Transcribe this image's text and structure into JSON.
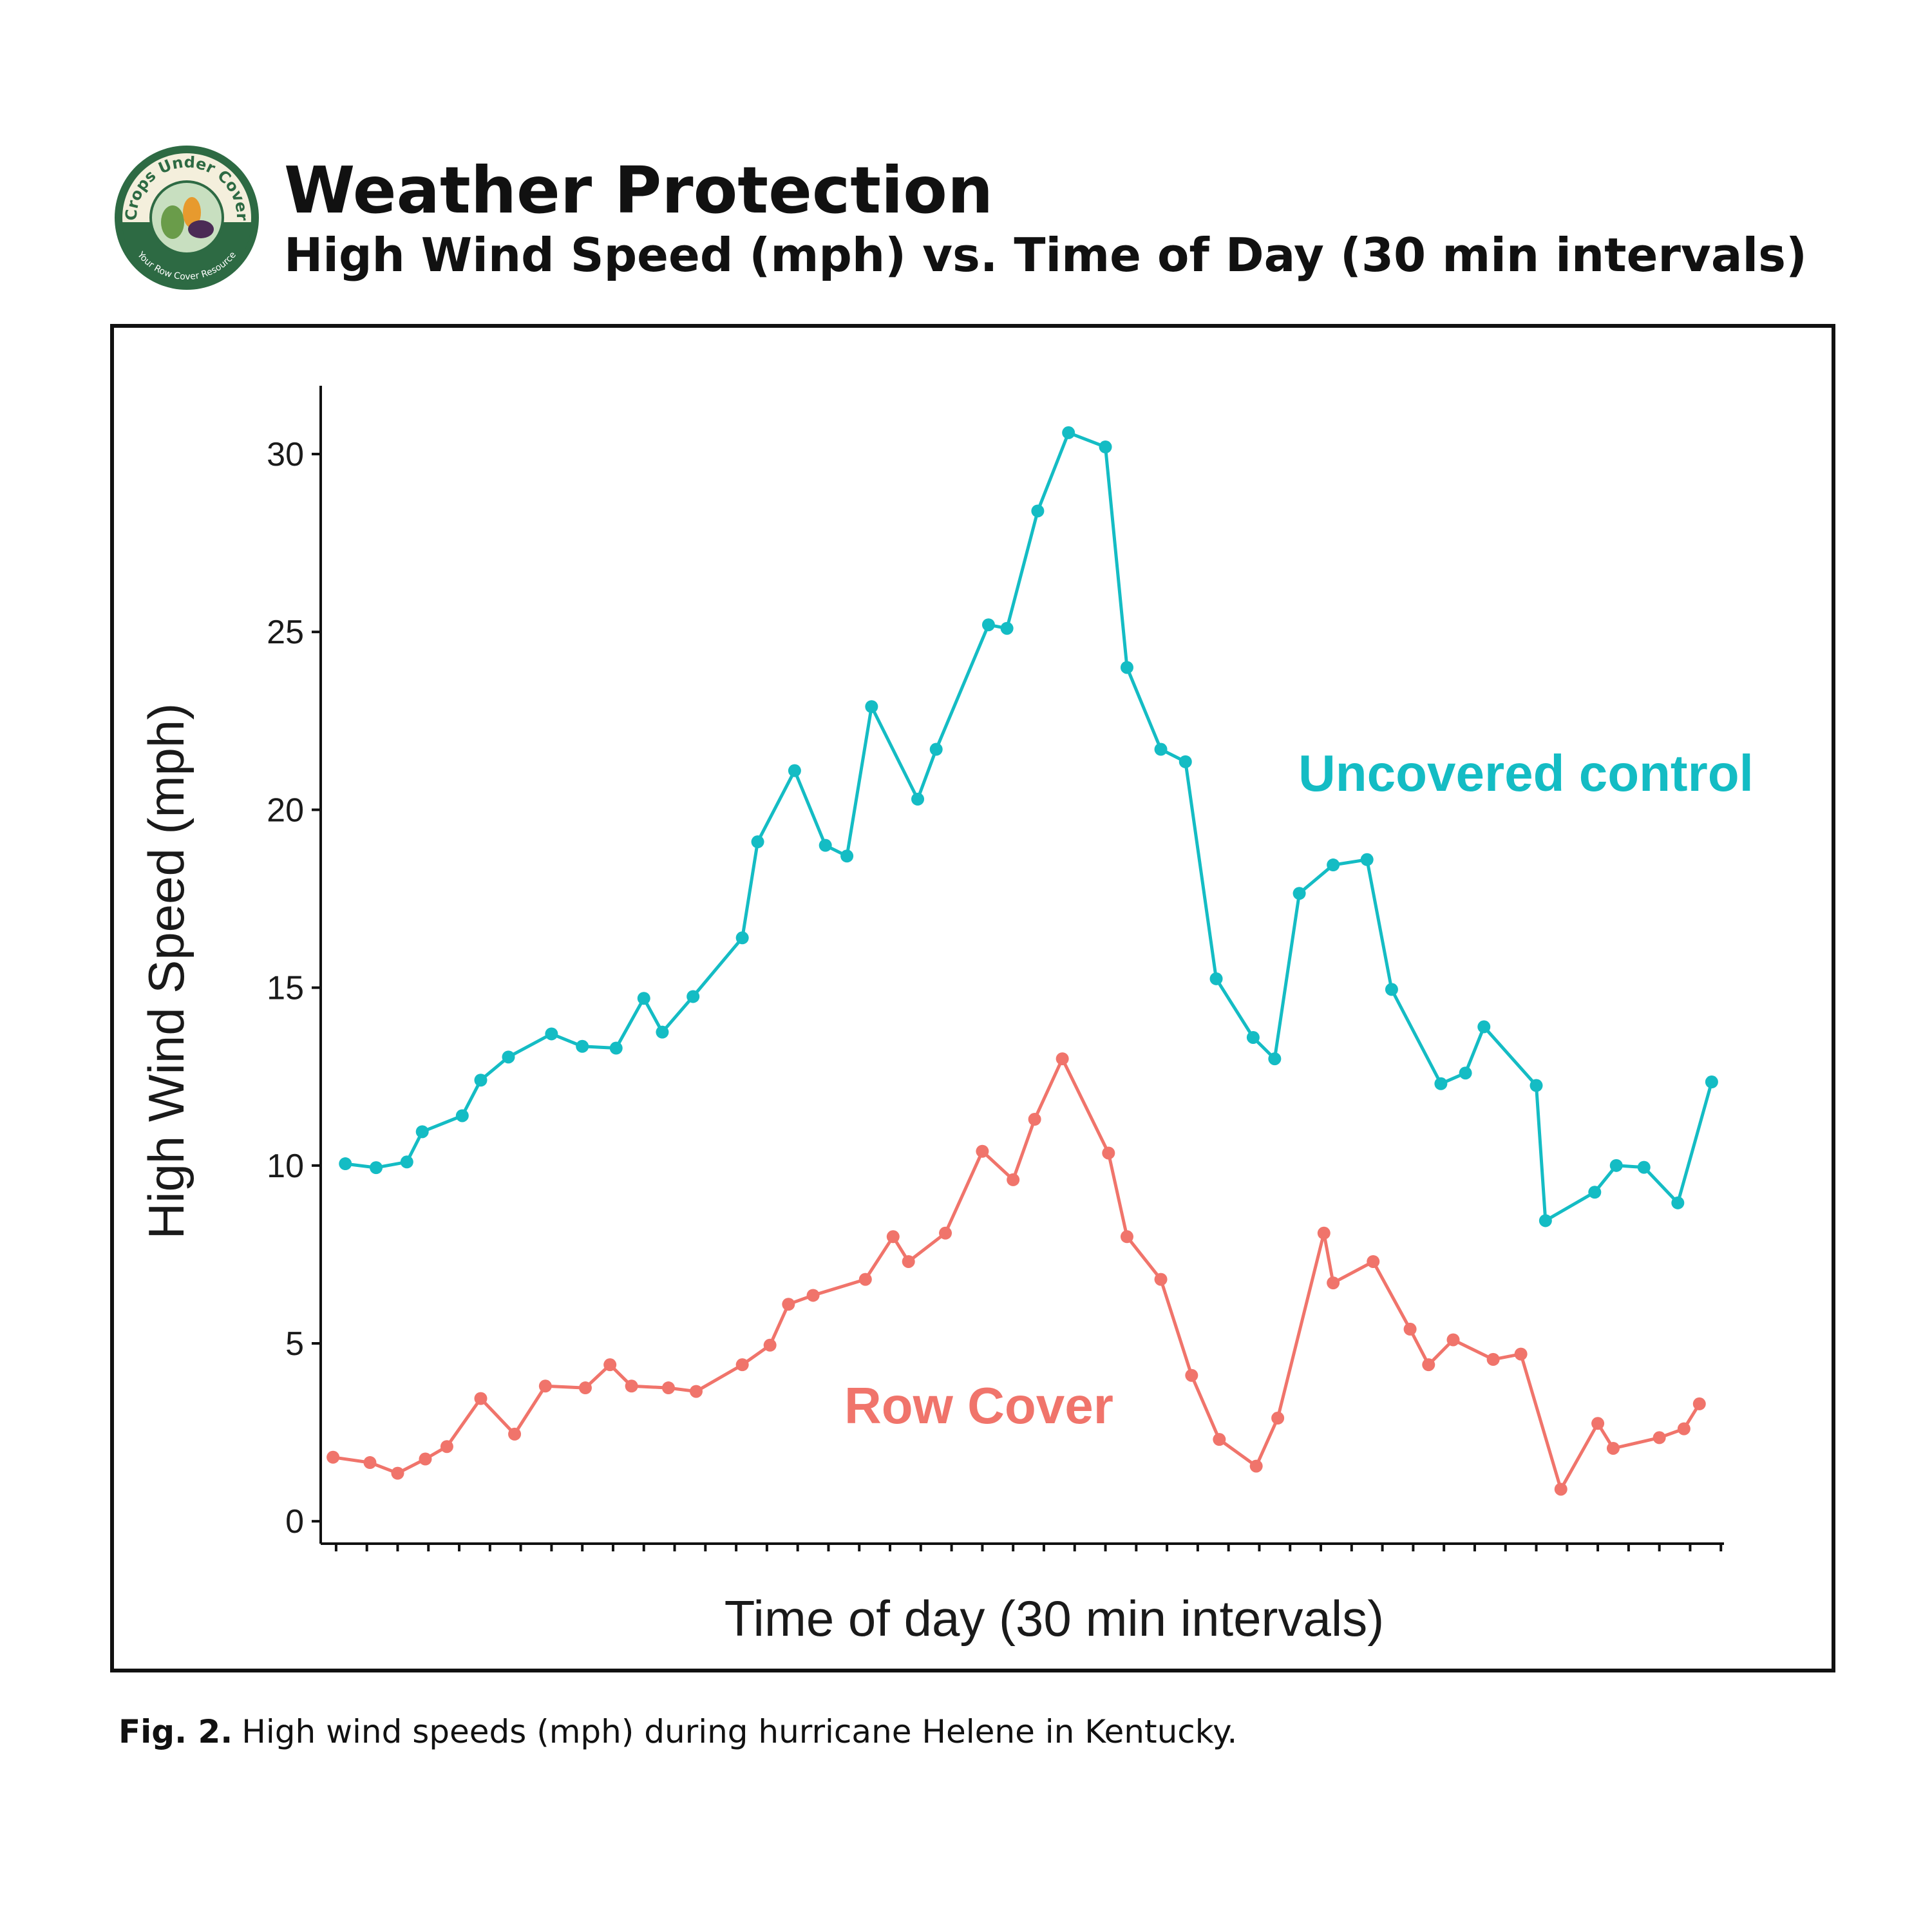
{
  "chart_data": {
    "type": "line",
    "title": "Weather Protection",
    "subtitle": "High Wind Speed (mph) vs. Time of Day (30 min intervals)",
    "logo_text": "Crops Under Cover",
    "logo_tagline": "Your Row Cover Resource",
    "x_label": "Time of day (30 min intervals)",
    "y_label": "High Wind Speed (mph)",
    "caption_label": "Fig. 2.",
    "caption": "High wind speeds (mph) during hurricane Helene in Kentucky.",
    "xlim": [
      -0.5,
      45.1
    ],
    "ylim": [
      -0.63,
      31.92
    ],
    "xticks": [
      0,
      1,
      2,
      3,
      4,
      5,
      6,
      7,
      8,
      9,
      10,
      11,
      12,
      13,
      14,
      15,
      16,
      17,
      18,
      19,
      20,
      21,
      22,
      23,
      24,
      25,
      26,
      27,
      28,
      29,
      30,
      31,
      32,
      33,
      34,
      35,
      36,
      37,
      38,
      39,
      40,
      41,
      42,
      43,
      44,
      45
    ],
    "yticks": [
      0,
      5,
      10,
      15,
      20,
      25,
      30
    ],
    "grid": false,
    "series": [
      {
        "name": "Uncovered control",
        "color": "#14bcc4",
        "x": [
          0.3,
          1.3,
          2.3,
          2.8,
          4.1,
          4.7,
          5.6,
          7.0,
          8.0,
          9.1,
          10.0,
          10.6,
          11.6,
          13.2,
          13.7,
          14.9,
          15.9,
          16.6,
          17.4,
          18.9,
          19.5,
          21.2,
          21.8,
          22.8,
          23.8,
          25.0,
          25.7,
          26.8,
          27.6,
          28.6,
          29.8,
          30.5,
          31.3,
          32.4,
          33.5,
          34.3,
          35.9,
          36.7,
          37.3,
          39.0,
          39.3,
          40.9,
          41.6,
          42.5,
          43.6,
          44.7
        ],
        "values": [
          10.05,
          9.94,
          10.1,
          10.95,
          11.4,
          12.4,
          13.05,
          13.7,
          13.35,
          13.3,
          14.7,
          13.75,
          14.75,
          16.4,
          19.1,
          21.1,
          19.0,
          18.7,
          22.9,
          20.3,
          21.7,
          25.2,
          25.1,
          28.4,
          30.6,
          30.2,
          24.0,
          21.7,
          21.35,
          15.25,
          13.6,
          13.0,
          17.65,
          18.45,
          18.6,
          14.95,
          12.3,
          12.6,
          13.9,
          12.25,
          8.45,
          9.25,
          10.0,
          9.95,
          8.95,
          12.35
        ]
      },
      {
        "name": "Row Cover",
        "color": "#f0746b",
        "x": [
          -0.1,
          1.1,
          2.0,
          2.9,
          3.6,
          4.7,
          5.8,
          6.8,
          8.1,
          8.9,
          9.6,
          10.8,
          11.7,
          13.2,
          14.1,
          14.7,
          15.5,
          17.2,
          18.1,
          18.6,
          19.8,
          21.0,
          22.0,
          22.7,
          23.6,
          25.1,
          25.7,
          26.8,
          27.8,
          28.7,
          29.9,
          30.6,
          32.1,
          32.4,
          33.7,
          34.9,
          35.5,
          36.3,
          37.6,
          38.5,
          39.8,
          41.0,
          41.5,
          43.0,
          43.8,
          44.3
        ],
        "values": [
          1.8,
          1.65,
          1.35,
          1.75,
          2.1,
          3.45,
          2.45,
          3.8,
          3.75,
          4.4,
          3.8,
          3.75,
          3.65,
          4.4,
          4.95,
          6.1,
          6.35,
          6.8,
          8.0,
          7.3,
          8.1,
          10.4,
          9.6,
          11.3,
          13.0,
          10.35,
          8.0,
          6.8,
          4.1,
          2.3,
          1.55,
          2.9,
          8.1,
          6.7,
          7.3,
          5.4,
          4.4,
          5.1,
          4.55,
          4.7,
          0.9,
          2.75,
          2.05,
          2.35,
          2.6,
          3.3
        ]
      }
    ]
  }
}
